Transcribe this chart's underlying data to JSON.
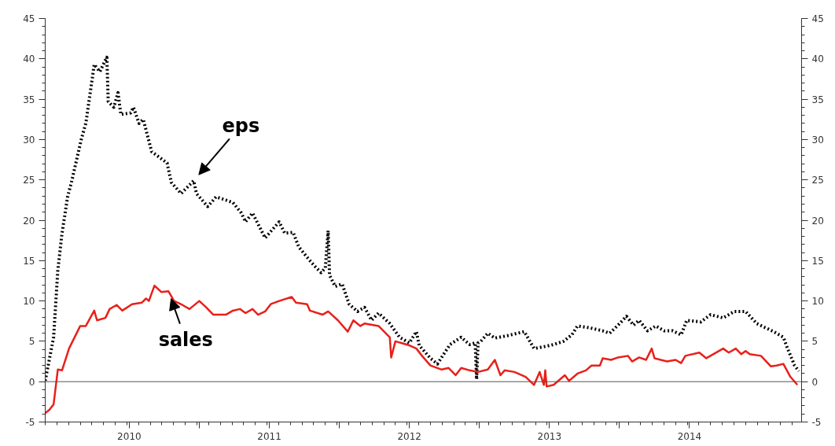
{
  "chart_data": {
    "type": "line",
    "xlim": [
      2009.9,
      2015.3
    ],
    "ylim": [
      -5,
      45
    ],
    "y2lim": [
      -5,
      45
    ],
    "xticks": [
      {
        "value": 2010.5,
        "label": "2010"
      },
      {
        "value": 2011,
        "label": null
      },
      {
        "value": 2011.5,
        "label": "2011"
      },
      {
        "value": 2012,
        "label": null
      },
      {
        "value": 2012.5,
        "label": "2012"
      },
      {
        "value": 2013,
        "label": null
      },
      {
        "value": 2013.5,
        "label": "2013"
      },
      {
        "value": 2014,
        "label": null
      },
      {
        "value": 2014.5,
        "label": "2014"
      }
    ],
    "yticks": [
      -5,
      0,
      5,
      10,
      15,
      20,
      25,
      30,
      35,
      40,
      45
    ],
    "y2ticks": [
      -5,
      0,
      5,
      10,
      15,
      20,
      25,
      30,
      35,
      40,
      45
    ],
    "grid": false,
    "ref_lines": [
      {
        "axis": "y",
        "value": 0,
        "color": "#555555"
      }
    ],
    "annotations": [
      {
        "text": "eps",
        "x": 2010.96,
        "y": 24.9
      },
      {
        "text": "sales",
        "x": 2010.78,
        "y": 11.2
      }
    ],
    "series": [
      {
        "color": "#000000",
        "line_style": "dotted",
        "x": [
          2009.9,
          2009.96,
          2009.99,
          2010.02,
          2010.06,
          2010.09,
          2010.16,
          2010.19,
          2010.25,
          2010.29,
          2010.34,
          2010.35,
          2010.39,
          2010.42,
          2010.44,
          2010.51,
          2010.53,
          2010.57,
          2010.6,
          2010.66,
          2010.77,
          2010.8,
          2010.87,
          2010.96,
          2010.98,
          2011.06,
          2011.12,
          2011.19,
          2011.24,
          2011.3,
          2011.33,
          2011.38,
          2011.47,
          2011.57,
          2011.61,
          2011.67,
          2011.71,
          2011.78,
          2011.83,
          2011.87,
          2011.9,
          2011.92,
          2011.93,
          2011.97,
          2012.02,
          2012.07,
          2012.13,
          2012.18,
          2012.23,
          2012.28,
          2012.36,
          2012.43,
          2012.5,
          2012.55,
          2012.57,
          2012.65,
          2012.7,
          2012.79,
          2012.87,
          2012.93,
          2012.97,
          2012.98,
          2012.99,
          2013.01,
          2013.06,
          2013.11,
          2013.2,
          2013.32,
          2013.39,
          2013.48,
          2013.53,
          2013.6,
          2013.66,
          2013.7,
          2013.78,
          2013.88,
          2013.93,
          2013.99,
          2014.05,
          2014.1,
          2014.14,
          2014.2,
          2014.26,
          2014.32,
          2014.38,
          2014.44,
          2014.48,
          2014.58,
          2014.65,
          2014.74,
          2014.82,
          2014.9,
          2014.98,
          2015.04,
          2015.1,
          2015.17,
          2015.2,
          2015.25,
          2015.28
        ],
        "values": [
          0.1,
          5.5,
          13.8,
          18.4,
          22.9,
          24.9,
          30.2,
          32.0,
          39.3,
          38.4,
          40.2,
          34.7,
          34.0,
          35.8,
          33.1,
          33.3,
          34.0,
          32.0,
          32.5,
          28.5,
          27.1,
          24.7,
          23.3,
          24.9,
          23.3,
          21.7,
          22.9,
          22.5,
          22.2,
          20.9,
          19.8,
          20.9,
          17.8,
          19.8,
          18.4,
          18.5,
          16.7,
          15.2,
          14.2,
          13.5,
          14.1,
          18.7,
          13.2,
          11.8,
          12.1,
          9.6,
          8.7,
          9.2,
          7.6,
          8.5,
          7.2,
          5.5,
          4.8,
          6.2,
          4.5,
          2.9,
          2.2,
          4.6,
          5.5,
          4.6,
          4.8,
          0.3,
          4.8,
          5.0,
          6.0,
          5.4,
          5.7,
          6.2,
          4.1,
          4.4,
          4.6,
          5.0,
          5.8,
          6.9,
          6.7,
          6.3,
          6.0,
          7.0,
          8.1,
          7.0,
          7.6,
          6.3,
          6.9,
          6.3,
          6.3,
          5.8,
          7.6,
          7.4,
          8.3,
          7.9,
          8.7,
          8.7,
          7.2,
          6.7,
          6.2,
          5.5,
          4.1,
          2.0,
          1.3
        ]
      },
      {
        "color": "#e8201a",
        "line_style": "solid",
        "x": [
          2009.9,
          2009.93,
          2009.96,
          2009.99,
          2010.02,
          2010.07,
          2010.15,
          2010.19,
          2010.25,
          2010.27,
          2010.33,
          2010.36,
          2010.41,
          2010.45,
          2010.52,
          2010.59,
          2010.62,
          2010.64,
          2010.68,
          2010.73,
          2010.78,
          2010.82,
          2010.88,
          2010.93,
          2011.0,
          2011.05,
          2011.1,
          2011.19,
          2011.24,
          2011.29,
          2011.33,
          2011.38,
          2011.42,
          2011.47,
          2011.51,
          2011.57,
          2011.66,
          2011.69,
          2011.77,
          2011.79,
          2011.88,
          2011.92,
          2011.99,
          2012.06,
          2012.1,
          2012.15,
          2012.18,
          2012.28,
          2012.36,
          2012.37,
          2012.4,
          2012.5,
          2012.55,
          2012.59,
          2012.65,
          2012.73,
          2012.78,
          2012.83,
          2012.87,
          2012.93,
          2012.99,
          2013.06,
          2013.11,
          2013.15,
          2013.18,
          2013.25,
          2013.33,
          2013.39,
          2013.43,
          2013.46,
          2013.47,
          2013.48,
          2013.53,
          2013.61,
          2013.64,
          2013.7,
          2013.76,
          2013.8,
          2013.86,
          2013.88,
          2013.94,
          2013.99,
          2014.06,
          2014.09,
          2014.14,
          2014.19,
          2014.23,
          2014.25,
          2014.34,
          2014.4,
          2014.44,
          2014.47,
          2014.57,
          2014.62,
          2014.74,
          2014.78,
          2014.83,
          2014.87,
          2014.9,
          2014.93,
          2015.01,
          2015.08,
          2015.12,
          2015.17,
          2015.22,
          2015.27
        ],
        "values": [
          -3.9,
          -3.5,
          -2.8,
          1.5,
          1.4,
          4.1,
          6.9,
          6.9,
          8.8,
          7.6,
          7.9,
          9.0,
          9.5,
          8.8,
          9.6,
          9.8,
          10.3,
          10.0,
          11.9,
          11.1,
          11.2,
          10.0,
          9.5,
          9.0,
          10.0,
          9.2,
          8.3,
          8.3,
          8.8,
          9.0,
          8.5,
          9.0,
          8.3,
          8.7,
          9.6,
          10.0,
          10.5,
          9.8,
          9.6,
          8.8,
          8.3,
          8.7,
          7.6,
          6.2,
          7.6,
          6.9,
          7.2,
          6.9,
          5.5,
          3.0,
          5.0,
          4.5,
          4.1,
          3.2,
          2.0,
          1.5,
          1.7,
          0.8,
          1.7,
          1.4,
          1.2,
          1.5,
          2.7,
          0.8,
          1.4,
          1.2,
          0.6,
          -0.4,
          1.2,
          -0.4,
          1.4,
          -0.6,
          -0.4,
          0.8,
          0.1,
          1.0,
          1.4,
          2.0,
          2.0,
          2.9,
          2.7,
          3.0,
          3.2,
          2.5,
          3.0,
          2.7,
          4.1,
          2.9,
          2.5,
          2.7,
          2.3,
          3.2,
          3.6,
          2.9,
          4.1,
          3.6,
          4.1,
          3.4,
          3.8,
          3.4,
          3.2,
          1.9,
          2.0,
          2.2,
          0.6,
          -0.4
        ]
      }
    ]
  }
}
